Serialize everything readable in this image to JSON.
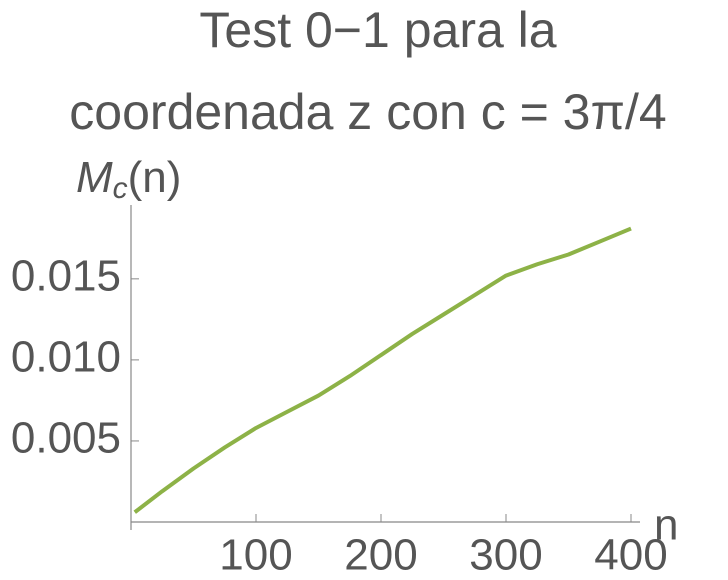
{
  "chart_data": {
    "type": "line",
    "title": [
      "Test 0−1 para la",
      "coordenada z con c = 3π/4"
    ],
    "x_label": "n",
    "y_label": {
      "main": "M",
      "sub": "c",
      "rest": "(n)"
    },
    "x": [
      3,
      25,
      50,
      75,
      100,
      125,
      150,
      175,
      200,
      225,
      250,
      275,
      300,
      325,
      350,
      375,
      400
    ],
    "series": [
      {
        "color": "#8db247",
        "values": [
          0.0006,
          0.0019,
          0.0033,
          0.0046,
          0.0058,
          0.0068,
          0.0078,
          0.009,
          0.0103,
          0.0116,
          0.0128,
          0.014,
          0.0152,
          0.0159,
          0.0165,
          0.0173,
          0.0181
        ]
      }
    ],
    "xlim": [
      0,
      400
    ],
    "ylim": [
      0,
      0.019
    ],
    "xticks": [
      100,
      200,
      300,
      400
    ],
    "yticks": [
      0.005,
      {
        "value": 0.01,
        "label": "0.010"
      },
      0.015
    ]
  }
}
